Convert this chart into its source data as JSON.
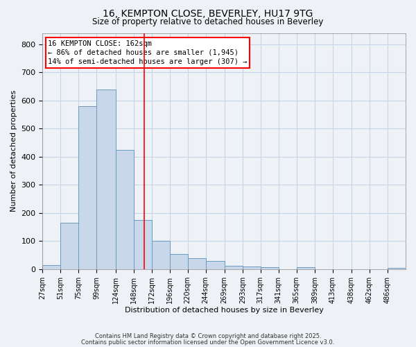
{
  "title1": "16, KEMPTON CLOSE, BEVERLEY, HU17 9TG",
  "title2": "Size of property relative to detached houses in Beverley",
  "xlabel": "Distribution of detached houses by size in Beverley",
  "ylabel": "Number of detached properties",
  "bin_edges": [
    27,
    51,
    75,
    99,
    124,
    148,
    172,
    196,
    220,
    244,
    269,
    293,
    317,
    341,
    365,
    389,
    413,
    438,
    462,
    486,
    510
  ],
  "bar_heights": [
    15,
    165,
    580,
    640,
    425,
    175,
    100,
    55,
    38,
    30,
    12,
    10,
    8,
    0,
    8,
    0,
    0,
    0,
    0,
    5
  ],
  "bar_color": "#c8d8ea",
  "bar_edge_color": "#6a9abf",
  "grid_color": "#c5d5e5",
  "bg_color": "#eef2f7",
  "property_line_x": 162,
  "property_line_color": "red",
  "annotation_line1": "16 KEMPTON CLOSE: 162sqm",
  "annotation_line2": "← 86% of detached houses are smaller (1,945)",
  "annotation_line3": "14% of semi-detached houses are larger (307) →",
  "annotation_box_color": "white",
  "annotation_box_edge": "red",
  "ylim": [
    0,
    840
  ],
  "yticks": [
    0,
    100,
    200,
    300,
    400,
    500,
    600,
    700,
    800
  ],
  "footnote1": "Contains HM Land Registry data © Crown copyright and database right 2025.",
  "footnote2": "Contains public sector information licensed under the Open Government Licence v3.0."
}
